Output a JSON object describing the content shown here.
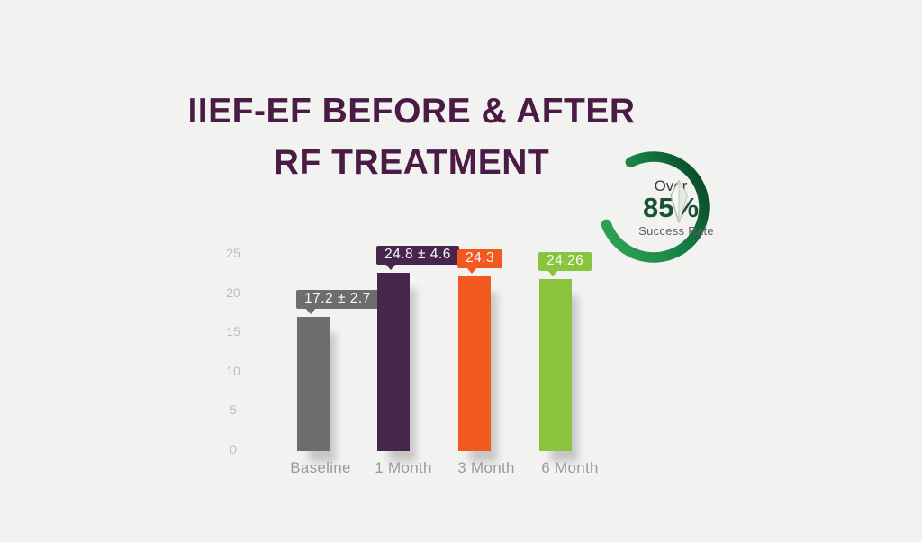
{
  "title": {
    "line1": "IIEF-EF BEFORE & AFTER",
    "line2": "RF TREATMENT"
  },
  "badge": {
    "over_label": "Over",
    "percent_label": "85%",
    "caption": "Success Rate",
    "over_color": "#3C3C3C",
    "percent_color": "#1A5134",
    "caption_color": "#5F5F5F",
    "ring_gradient": [
      "#2EA156",
      "#168245",
      "#0A4C29"
    ],
    "arrow_outline": "#B9BCB4"
  },
  "chart_data": {
    "type": "bar",
    "title": "IIEF-EF BEFORE & AFTER RF TREATMENT",
    "categories": [
      "Baseline",
      "1 Month",
      "3 Month",
      "6 Month"
    ],
    "values": [
      17.2,
      24.8,
      24.3,
      24.26
    ],
    "error_margins": [
      2.7,
      4.6,
      null,
      null
    ],
    "data_labels": [
      "17.2 ± 2.7",
      "24.8 ± 4.6",
      "24.3",
      "24.26"
    ],
    "bar_colors": [
      "#6E6C6E",
      "#46264C",
      "#F2591F",
      "#8AC43E"
    ],
    "bar_display_height_units": [
      16.9,
      22.5,
      22.0,
      21.7
    ],
    "yticks": [
      0,
      5,
      10,
      15,
      20,
      25
    ],
    "ylim": [
      0,
      25
    ],
    "xlabel": "",
    "ylabel": "",
    "grid": false,
    "legend": null,
    "tick_color": "#BDBDBB",
    "xlabel_color": "#9B9B9B"
  },
  "colors": {
    "background": "#F2F2F0",
    "title": "#4A1B45"
  }
}
